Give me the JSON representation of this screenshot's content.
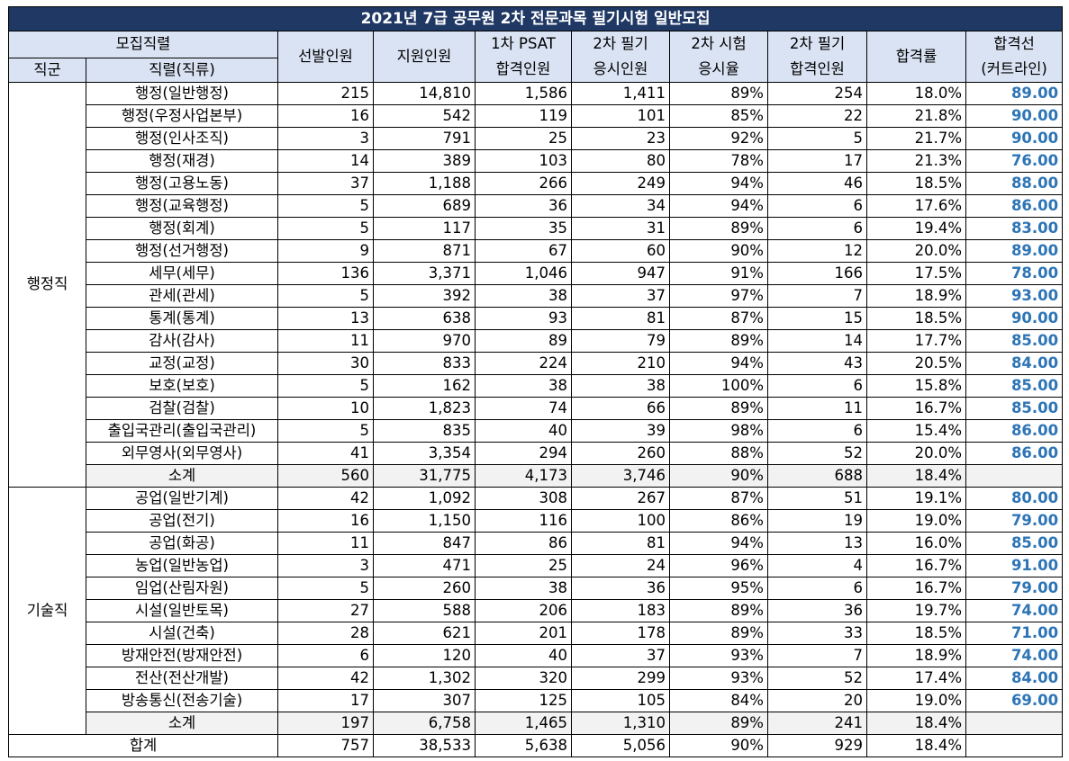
{
  "title": "2021년 7급 공무원 2차 전문과목 필기시험 일반모집",
  "headers": {
    "group": "모집직렬",
    "jikgun": "직군",
    "jikryeol": "직렬(직류)",
    "selected": "선발인원",
    "applied": "지원인원",
    "psat_l1": "1차 PSAT",
    "psat_l2": "합격인원",
    "written_l1": "2차 필기",
    "written_l2": "응시인원",
    "rate_l1": "2차 시험",
    "rate_l2": "응시율",
    "pass_l1": "2차 필기",
    "pass_l2": "합격인원",
    "pass_rate": "합격률",
    "cut_l1": "합격선",
    "cut_l2": "(커트라인)"
  },
  "groups": [
    {
      "name": "행정직",
      "rows": [
        {
          "job": "행정(일반행정)",
          "sel": "215",
          "app": "14,810",
          "psat": "1,586",
          "wr": "1,411",
          "rate": "89%",
          "pass": "254",
          "prate": "18.0%",
          "cut": "89.00"
        },
        {
          "job": "행정(우정사업본부)",
          "sel": "16",
          "app": "542",
          "psat": "119",
          "wr": "101",
          "rate": "85%",
          "pass": "22",
          "prate": "21.8%",
          "cut": "90.00"
        },
        {
          "job": "행정(인사조직)",
          "sel": "3",
          "app": "791",
          "psat": "25",
          "wr": "23",
          "rate": "92%",
          "pass": "5",
          "prate": "21.7%",
          "cut": "90.00"
        },
        {
          "job": "행정(재경)",
          "sel": "14",
          "app": "389",
          "psat": "103",
          "wr": "80",
          "rate": "78%",
          "pass": "17",
          "prate": "21.3%",
          "cut": "76.00"
        },
        {
          "job": "행정(고용노동)",
          "sel": "37",
          "app": "1,188",
          "psat": "266",
          "wr": "249",
          "rate": "94%",
          "pass": "46",
          "prate": "18.5%",
          "cut": "88.00"
        },
        {
          "job": "행정(교육행정)",
          "sel": "5",
          "app": "689",
          "psat": "36",
          "wr": "34",
          "rate": "94%",
          "pass": "6",
          "prate": "17.6%",
          "cut": "86.00"
        },
        {
          "job": "행정(회계)",
          "sel": "5",
          "app": "117",
          "psat": "35",
          "wr": "31",
          "rate": "89%",
          "pass": "6",
          "prate": "19.4%",
          "cut": "83.00"
        },
        {
          "job": "행정(선거행정)",
          "sel": "9",
          "app": "871",
          "psat": "67",
          "wr": "60",
          "rate": "90%",
          "pass": "12",
          "prate": "20.0%",
          "cut": "89.00"
        },
        {
          "job": "세무(세무)",
          "sel": "136",
          "app": "3,371",
          "psat": "1,046",
          "wr": "947",
          "rate": "91%",
          "pass": "166",
          "prate": "17.5%",
          "cut": "78.00"
        },
        {
          "job": "관세(관세)",
          "sel": "5",
          "app": "392",
          "psat": "38",
          "wr": "37",
          "rate": "97%",
          "pass": "7",
          "prate": "18.9%",
          "cut": "93.00"
        },
        {
          "job": "통계(통계)",
          "sel": "13",
          "app": "638",
          "psat": "93",
          "wr": "81",
          "rate": "87%",
          "pass": "15",
          "prate": "18.5%",
          "cut": "90.00"
        },
        {
          "job": "감사(감사)",
          "sel": "11",
          "app": "970",
          "psat": "89",
          "wr": "79",
          "rate": "89%",
          "pass": "14",
          "prate": "17.7%",
          "cut": "85.00"
        },
        {
          "job": "교정(교정)",
          "sel": "30",
          "app": "833",
          "psat": "224",
          "wr": "210",
          "rate": "94%",
          "pass": "43",
          "prate": "20.5%",
          "cut": "84.00"
        },
        {
          "job": "보호(보호)",
          "sel": "5",
          "app": "162",
          "psat": "38",
          "wr": "38",
          "rate": "100%",
          "pass": "6",
          "prate": "15.8%",
          "cut": "85.00"
        },
        {
          "job": "검찰(검찰)",
          "sel": "10",
          "app": "1,823",
          "psat": "74",
          "wr": "66",
          "rate": "89%",
          "pass": "11",
          "prate": "16.7%",
          "cut": "85.00"
        },
        {
          "job": "출입국관리(출입국관리)",
          "sel": "5",
          "app": "835",
          "psat": "40",
          "wr": "39",
          "rate": "98%",
          "pass": "6",
          "prate": "15.4%",
          "cut": "86.00"
        },
        {
          "job": "외무영사(외무영사)",
          "sel": "41",
          "app": "3,354",
          "psat": "294",
          "wr": "260",
          "rate": "88%",
          "pass": "52",
          "prate": "20.0%",
          "cut": "86.00"
        }
      ],
      "subtotal": {
        "job": "소계",
        "sel": "560",
        "app": "31,775",
        "psat": "4,173",
        "wr": "3,746",
        "rate": "90%",
        "pass": "688",
        "prate": "18.4%",
        "cut": ""
      }
    },
    {
      "name": "기술직",
      "rows": [
        {
          "job": "공업(일반기계)",
          "sel": "42",
          "app": "1,092",
          "psat": "308",
          "wr": "267",
          "rate": "87%",
          "pass": "51",
          "prate": "19.1%",
          "cut": "80.00"
        },
        {
          "job": "공업(전기)",
          "sel": "16",
          "app": "1,150",
          "psat": "116",
          "wr": "100",
          "rate": "86%",
          "pass": "19",
          "prate": "19.0%",
          "cut": "79.00"
        },
        {
          "job": "공업(화공)",
          "sel": "11",
          "app": "847",
          "psat": "86",
          "wr": "81",
          "rate": "94%",
          "pass": "13",
          "prate": "16.0%",
          "cut": "85.00"
        },
        {
          "job": "농업(일반농업)",
          "sel": "3",
          "app": "471",
          "psat": "25",
          "wr": "24",
          "rate": "96%",
          "pass": "4",
          "prate": "16.7%",
          "cut": "91.00"
        },
        {
          "job": "임업(산림자원)",
          "sel": "5",
          "app": "260",
          "psat": "38",
          "wr": "36",
          "rate": "95%",
          "pass": "6",
          "prate": "16.7%",
          "cut": "79.00"
        },
        {
          "job": "시설(일반토목)",
          "sel": "27",
          "app": "588",
          "psat": "206",
          "wr": "183",
          "rate": "89%",
          "pass": "36",
          "prate": "19.7%",
          "cut": "74.00"
        },
        {
          "job": "시설(건축)",
          "sel": "28",
          "app": "621",
          "psat": "201",
          "wr": "178",
          "rate": "89%",
          "pass": "33",
          "prate": "18.5%",
          "cut": "71.00"
        },
        {
          "job": "방재안전(방재안전)",
          "sel": "6",
          "app": "120",
          "psat": "40",
          "wr": "37",
          "rate": "93%",
          "pass": "7",
          "prate": "18.9%",
          "cut": "74.00"
        },
        {
          "job": "전산(전산개발)",
          "sel": "42",
          "app": "1,302",
          "psat": "320",
          "wr": "299",
          "rate": "93%",
          "pass": "52",
          "prate": "17.4%",
          "cut": "84.00"
        },
        {
          "job": "방송통신(전송기술)",
          "sel": "17",
          "app": "307",
          "psat": "125",
          "wr": "105",
          "rate": "84%",
          "pass": "20",
          "prate": "19.0%",
          "cut": "69.00"
        }
      ],
      "subtotal": {
        "job": "소계",
        "sel": "197",
        "app": "6,758",
        "psat": "1,465",
        "wr": "1,310",
        "rate": "89%",
        "pass": "241",
        "prate": "18.4%",
        "cut": ""
      }
    }
  ],
  "total": {
    "job": "합계",
    "sel": "757",
    "app": "38,533",
    "psat": "5,638",
    "wr": "5,056",
    "rate": "90%",
    "pass": "929",
    "prate": "18.4%",
    "cut": ""
  }
}
